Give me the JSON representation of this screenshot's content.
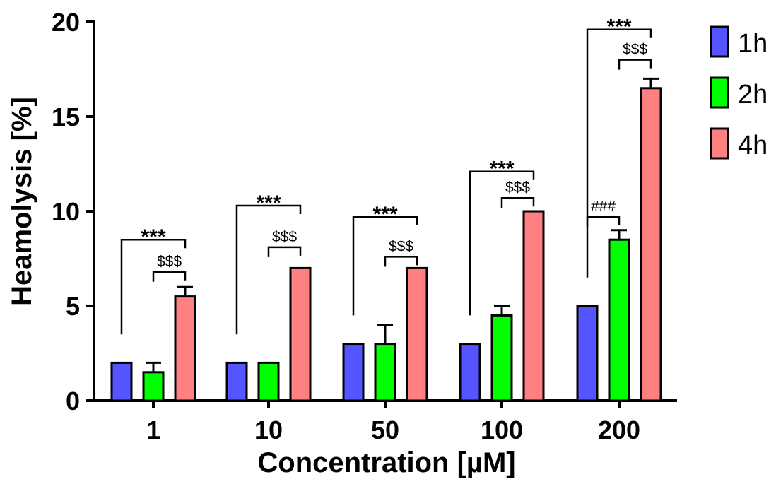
{
  "chart_data": {
    "type": "bar",
    "xlabel": "Concentration [µM]",
    "ylabel": "Heamolysis [%]",
    "ylim": [
      0,
      20
    ],
    "yticks": [
      0,
      5,
      10,
      15,
      20
    ],
    "categories": [
      "1",
      "10",
      "50",
      "100",
      "200"
    ],
    "series": [
      {
        "name": "1h",
        "color": "#5555ff",
        "values": [
          2,
          2,
          3,
          3,
          5
        ],
        "errors": [
          0,
          0,
          0,
          0,
          0
        ]
      },
      {
        "name": "2h",
        "color": "#00ff00",
        "values": [
          1.5,
          2,
          3,
          4.5,
          8.5
        ],
        "errors": [
          0.5,
          0,
          1,
          0.5,
          0.5
        ]
      },
      {
        "name": "4h",
        "color": "#ff8080",
        "values": [
          5.5,
          7,
          7,
          10,
          16.5
        ],
        "errors": [
          0.5,
          0,
          0,
          0,
          0.5
        ]
      }
    ],
    "legend_position": "top-right",
    "annotations": [
      {
        "category": 0,
        "from": "1h",
        "to": "4h",
        "label": "***",
        "level": 8.5,
        "style": "stars"
      },
      {
        "category": 0,
        "from": "2h",
        "to": "4h",
        "label": "$$$",
        "level": 6.8,
        "style": "small"
      },
      {
        "category": 1,
        "from": "1h",
        "to": "4h",
        "label": "***",
        "level": 10.3,
        "style": "stars"
      },
      {
        "category": 1,
        "from": "2h",
        "to": "4h",
        "label": "$$$",
        "level": 8.1,
        "style": "small"
      },
      {
        "category": 2,
        "from": "1h",
        "to": "4h",
        "label": "***",
        "level": 9.7,
        "style": "stars"
      },
      {
        "category": 2,
        "from": "2h",
        "to": "4h",
        "label": "$$$",
        "level": 7.6,
        "style": "small"
      },
      {
        "category": 3,
        "from": "1h",
        "to": "4h",
        "label": "***",
        "level": 12.1,
        "style": "stars"
      },
      {
        "category": 3,
        "from": "2h",
        "to": "4h",
        "label": "$$$",
        "level": 10.7,
        "style": "small"
      },
      {
        "category": 4,
        "from": "1h",
        "to": "4h",
        "label": "***",
        "level": 19.6,
        "style": "stars"
      },
      {
        "category": 4,
        "from": "2h",
        "to": "4h",
        "label": "$$$",
        "level": 18,
        "style": "small"
      },
      {
        "category": 4,
        "from": "1h",
        "to": "2h",
        "label": "###",
        "level": 9.7,
        "style": "small"
      }
    ]
  }
}
